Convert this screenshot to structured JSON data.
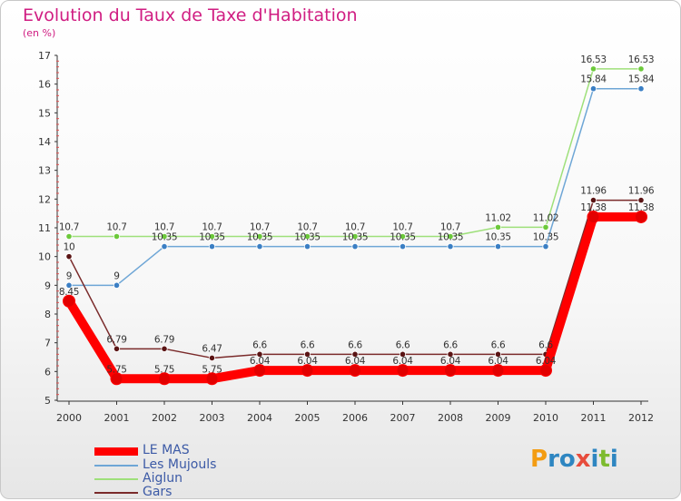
{
  "title": "Evolution du Taux de Taxe d'Habitation",
  "subtitle": "(en %)",
  "logo": {
    "text": "Proxiti",
    "colors": [
      "#f39c12",
      "#2e86c1",
      "#2e86c1",
      "#e74c3c",
      "#2e86c1",
      "#7dbb2f",
      "#2e86c1"
    ]
  },
  "legend": {
    "items": [
      {
        "label": "LE MAS",
        "color": "#ff0000"
      },
      {
        "label": "Les Mujouls",
        "color": "#6ea6d6"
      },
      {
        "label": "Aiglun",
        "color": "#9ee07a"
      },
      {
        "label": "Gars",
        "color": "#7a2a2a"
      }
    ]
  },
  "chart_data": {
    "type": "line",
    "title": "Evolution du Taux de Taxe d'Habitation",
    "subtitle": "(en %)",
    "x": [
      "2000",
      "2001",
      "2002",
      "2003",
      "2004",
      "2005",
      "2006",
      "2007",
      "2008",
      "2009",
      "2010",
      "2011",
      "2012"
    ],
    "ylim": [
      5,
      17
    ],
    "yticks": [
      "5",
      "6",
      "7",
      "8",
      "9",
      "10",
      "11",
      "12",
      "13",
      "14",
      "15",
      "16",
      "17"
    ],
    "grid": false,
    "legend_position": "bottom-left",
    "series": [
      {
        "name": "LE MAS",
        "color": "#ff0000",
        "marker": "#e30000",
        "values": [
          8.45,
          5.75,
          5.75,
          5.75,
          6.04,
          6.04,
          6.04,
          6.04,
          6.04,
          6.04,
          6.04,
          11.38,
          11.38
        ],
        "labels": [
          "8.45",
          "5.75",
          "5.75",
          "5.75",
          "6.04",
          "6.04",
          "6.04",
          "6.04",
          "6.04",
          "6.04",
          "6.04",
          "11.38",
          "11.38"
        ]
      },
      {
        "name": "Les Mujouls",
        "color": "#6ea6d6",
        "marker": "#3b7fc4",
        "values": [
          9,
          9,
          10.35,
          10.35,
          10.35,
          10.35,
          10.35,
          10.35,
          10.35,
          10.35,
          10.35,
          15.84,
          15.84
        ],
        "labels": [
          "9",
          "9",
          "10.35",
          "10.35",
          "10.35",
          "10.35",
          "10.35",
          "10.35",
          "10.35",
          "10.35",
          "10.35",
          "15.84",
          "15.84"
        ]
      },
      {
        "name": "Aiglun",
        "color": "#9ee07a",
        "marker": "#6cc93b",
        "values": [
          10.7,
          10.7,
          10.7,
          10.7,
          10.7,
          10.7,
          10.7,
          10.7,
          10.7,
          11.02,
          11.02,
          16.53,
          16.53
        ],
        "labels": [
          "10.7",
          "10.7",
          "10.7",
          "10.7",
          "10.7",
          "10.7",
          "10.7",
          "10.7",
          "10.7",
          "11.02",
          "11.02",
          "16.53",
          "16.53"
        ]
      },
      {
        "name": "Gars",
        "color": "#7a2a2a",
        "marker": "#5a1414",
        "values": [
          10,
          6.79,
          6.79,
          6.47,
          6.6,
          6.6,
          6.6,
          6.6,
          6.6,
          6.6,
          6.6,
          11.96,
          11.96
        ],
        "labels": [
          "10",
          "6.79",
          "6.79",
          "6.47",
          "6.6",
          "6.6",
          "6.6",
          "6.6",
          "6.6",
          "6.6",
          "6.6",
          "11.96",
          "11.96"
        ]
      }
    ]
  }
}
